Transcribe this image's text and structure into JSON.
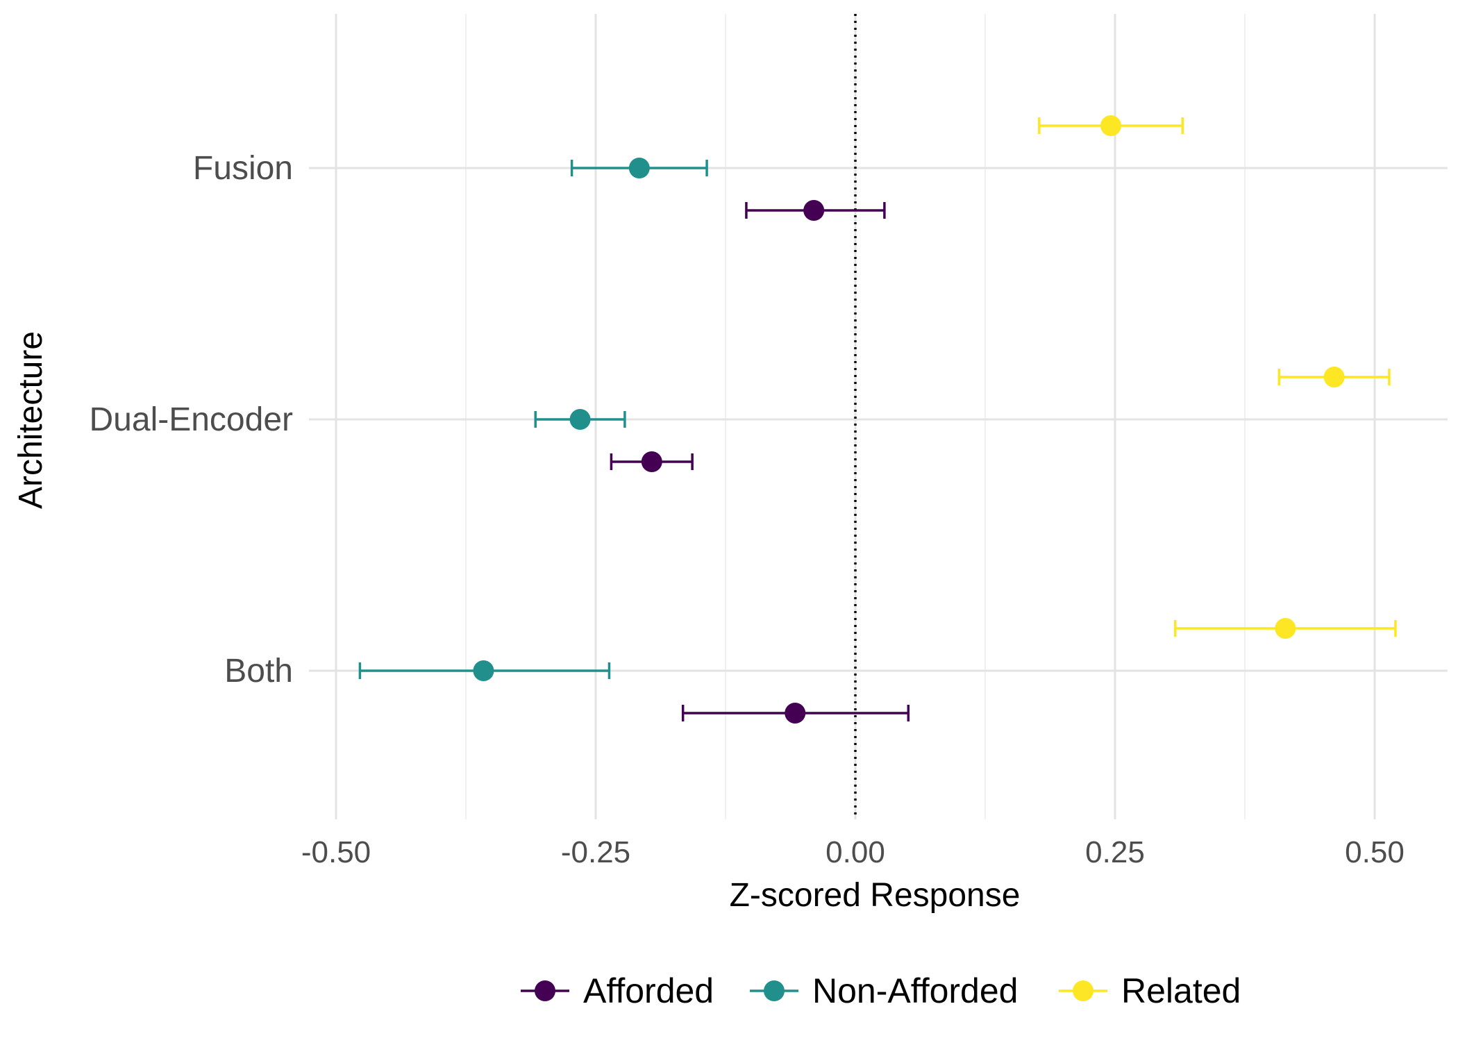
{
  "chart_data": {
    "type": "scatter",
    "subtype": "dot-with-errorbars",
    "title": "",
    "xlabel": "Z-scored Response",
    "ylabel": "Architecture",
    "xlim": [
      -0.53,
      0.57
    ],
    "x_ticks": [
      -0.5,
      -0.25,
      0.0,
      0.25,
      0.5
    ],
    "x_tick_labels": [
      "-0.50",
      "-0.25",
      "0.00",
      "0.25",
      "0.50"
    ],
    "categories": [
      "Fusion",
      "Dual-Encoder",
      "Both"
    ],
    "grid": true,
    "reference_line": {
      "x": 0,
      "style": "dotted"
    },
    "legend": {
      "position": "bottom"
    },
    "series": [
      {
        "name": "Afforded",
        "color": "#440154",
        "points": [
          {
            "category": "Fusion",
            "mean": -0.04,
            "lower": -0.105,
            "upper": 0.028
          },
          {
            "category": "Dual-Encoder",
            "mean": -0.196,
            "lower": -0.235,
            "upper": -0.157
          },
          {
            "category": "Both",
            "mean": -0.058,
            "lower": -0.166,
            "upper": 0.051
          }
        ]
      },
      {
        "name": "Non-Afforded",
        "color": "#21908C",
        "points": [
          {
            "category": "Fusion",
            "mean": -0.208,
            "lower": -0.273,
            "upper": -0.143
          },
          {
            "category": "Dual-Encoder",
            "mean": -0.265,
            "lower": -0.308,
            "upper": -0.222
          },
          {
            "category": "Both",
            "mean": -0.358,
            "lower": -0.477,
            "upper": -0.237
          }
        ]
      },
      {
        "name": "Related",
        "color": "#FDE725",
        "points": [
          {
            "category": "Fusion",
            "mean": 0.246,
            "lower": 0.177,
            "upper": 0.315
          },
          {
            "category": "Dual-Encoder",
            "mean": 0.461,
            "lower": 0.408,
            "upper": 0.514
          },
          {
            "category": "Both",
            "mean": 0.414,
            "lower": 0.308,
            "upper": 0.52
          }
        ]
      }
    ]
  }
}
